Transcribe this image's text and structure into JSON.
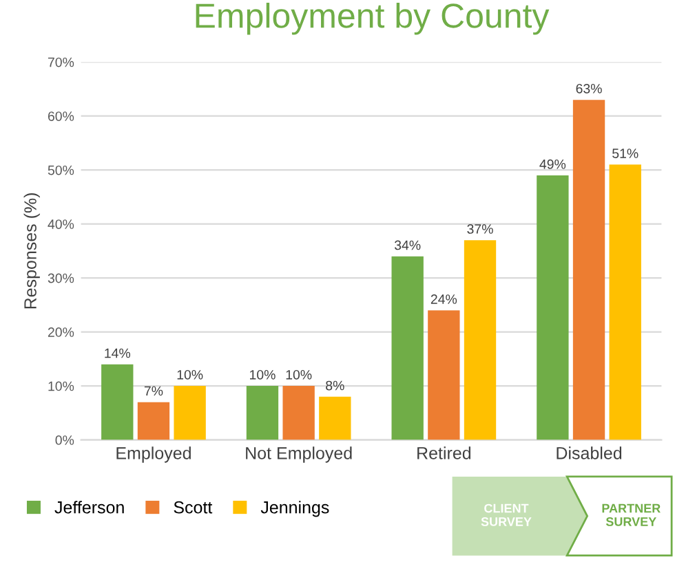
{
  "chart_data": {
    "type": "bar",
    "title": "Employment by County",
    "ylabel": "Responses (%)",
    "categories": [
      "Employed",
      "Not Employed",
      "Retired",
      "Disabled"
    ],
    "series": [
      {
        "name": "Jefferson",
        "color": "#70ad47",
        "values": [
          14,
          10,
          34,
          49
        ]
      },
      {
        "name": "Scott",
        "color": "#ed7d31",
        "values": [
          7,
          10,
          24,
          63
        ]
      },
      {
        "name": "Jennings",
        "color": "#ffc000",
        "values": [
          10,
          8,
          37,
          51
        ]
      }
    ],
    "ylim": [
      0,
      70
    ],
    "yticks": [
      {
        "value": 0,
        "label": "0%"
      },
      {
        "value": 10,
        "label": "10%"
      },
      {
        "value": 20,
        "label": "20%"
      },
      {
        "value": 30,
        "label": "30%"
      },
      {
        "value": 40,
        "label": "40%"
      },
      {
        "value": 50,
        "label": "50%"
      },
      {
        "value": 60,
        "label": "60%"
      },
      {
        "value": 70,
        "label": "70%"
      }
    ],
    "value_labels": [
      [
        "14%",
        "10%",
        "34%",
        "49%"
      ],
      [
        "7%",
        "10%",
        "24%",
        "63%"
      ],
      [
        "10%",
        "8%",
        "37%",
        "51%"
      ]
    ],
    "grid": "y",
    "legend": "bottom left",
    "annotations": [
      "CLIENT SURVEY",
      "PARTNER SURVEY"
    ]
  }
}
